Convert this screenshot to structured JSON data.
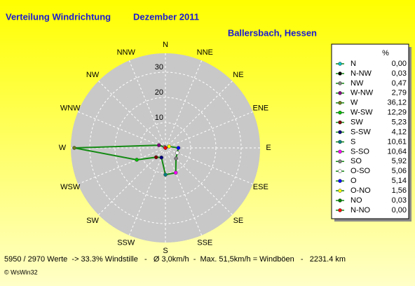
{
  "chart_data": {
    "type": "windrose",
    "title": "Verteilung Windrichtung",
    "period": "Dezember 2011",
    "location": "Ballersbach, Hessen",
    "direction_labels": [
      "N",
      "NNE",
      "NE",
      "ENE",
      "E",
      "ESE",
      "SE",
      "SSE",
      "S",
      "SSW",
      "SW",
      "WSW",
      "W",
      "WNW",
      "NW",
      "NNW"
    ],
    "categories": [
      "N",
      "N-NW",
      "NW",
      "W-NW",
      "W",
      "W-SW",
      "SW",
      "S-SW",
      "S",
      "S-SO",
      "SO",
      "O-SO",
      "O",
      "O-NO",
      "NO",
      "N-NO"
    ],
    "values": [
      0.0,
      0.03,
      0.47,
      2.79,
      36.12,
      12.29,
      5.23,
      4.12,
      10.61,
      10.64,
      5.92,
      5.06,
      5.14,
      1.56,
      0.03,
      0.0
    ],
    "value_labels": [
      "0,00",
      "0,03",
      "0,47",
      "2,79",
      "36,12",
      "12,29",
      "5,23",
      "4,12",
      "10,61",
      "10,64",
      "5,92",
      "5,06",
      "5,14",
      "1,56",
      "0,03",
      "0,00"
    ],
    "colors": [
      "#00c0c0",
      "#000000",
      "#808080",
      "#800080",
      "#6b7f1a",
      "#00c000",
      "#800000",
      "#000080",
      "#008080",
      "#ff00ff",
      "#808080",
      "#ffffff",
      "#0000ff",
      "#ffff00",
      "#008000",
      "#ff0000"
    ],
    "line_color": "#138a13",
    "rlim": [
      0,
      37.5
    ],
    "rticks": [
      10,
      20,
      30
    ],
    "grid": true,
    "legend_title": "%",
    "footer": "5950 / 2970 Werte  -> 33.3% Windstille   -   Ø 3,0km/h  -  Max. 51,5km/h = Windböen   -   2231.4 km",
    "copyright": "© WsWin32"
  }
}
